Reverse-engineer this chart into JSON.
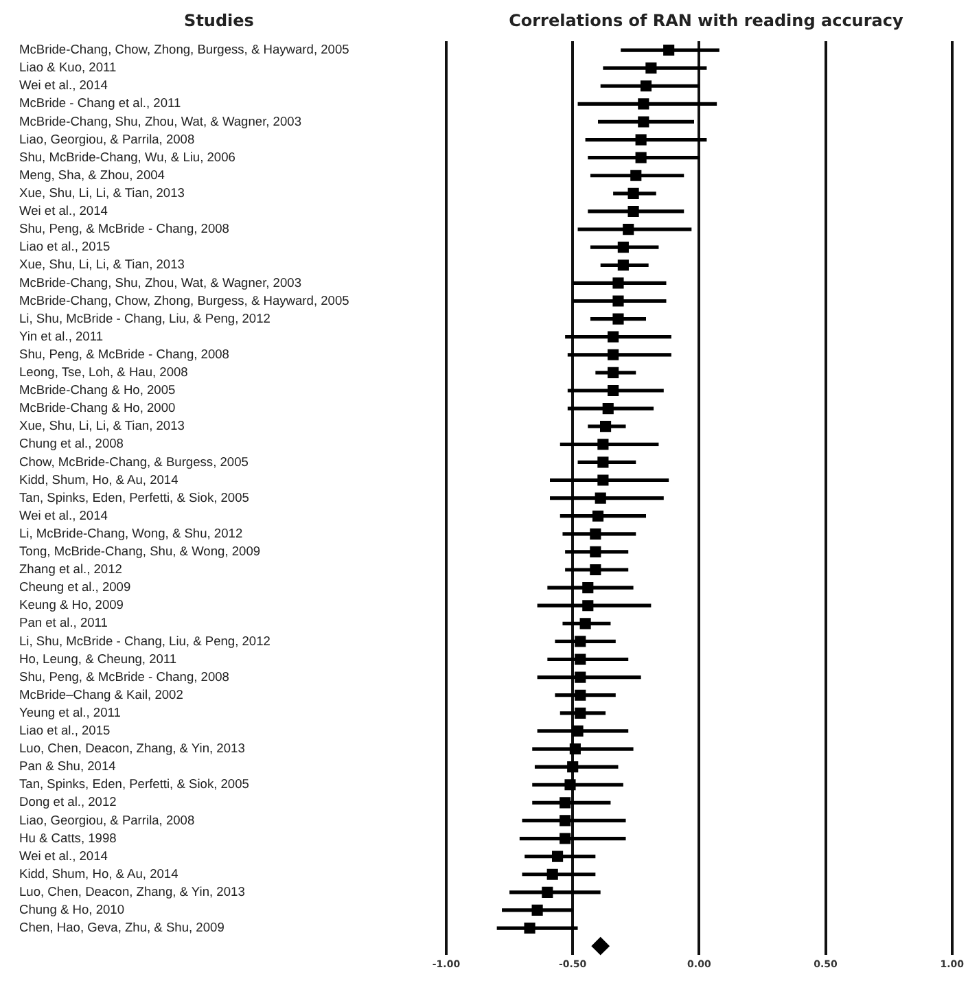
{
  "chart_data": {
    "type": "scatter",
    "orientation": "horizontal",
    "title": "Correlations of RAN with reading accuracy",
    "ylabel": "Studies",
    "categories": [
      "McBride-Chang, Chow, Zhong, Burgess, & Hayward, 2005",
      "Liao & Kuo, 2011",
      "Wei et al., 2014",
      "McBride - Chang et al., 2011",
      "McBride-Chang, Shu, Zhou, Wat, & Wagner, 2003",
      "Liao, Georgiou, & Parrila, 2008",
      "Shu, McBride-Chang, Wu, & Liu, 2006",
      "Meng, Sha, & Zhou, 2004",
      "Xue, Shu, Li, Li, & Tian, 2013",
      "Wei et al., 2014",
      "Shu, Peng, & McBride - Chang, 2008",
      "Liao et al., 2015",
      "Xue, Shu, Li, Li, & Tian, 2013",
      "McBride-Chang, Shu, Zhou, Wat, & Wagner, 2003",
      "McBride-Chang, Chow, Zhong, Burgess, & Hayward, 2005",
      "Li, Shu, McBride - Chang, Liu, & Peng, 2012",
      "Yin et al., 2011",
      "Shu, Peng, & McBride - Chang, 2008",
      "Leong, Tse, Loh, & Hau, 2008",
      "McBride-Chang & Ho, 2005",
      "McBride-Chang & Ho, 2000",
      "Xue, Shu, Li, Li, & Tian, 2013",
      "Chung et al., 2008",
      "Chow, McBride-Chang, & Burgess, 2005",
      "Kidd, Shum, Ho, & Au, 2014",
      "Tan, Spinks, Eden, Perfetti, & Siok, 2005",
      "Wei et al., 2014",
      "Li, McBride-Chang, Wong, & Shu, 2012",
      "Tong, McBride-Chang, Shu, & Wong, 2009",
      "Zhang et al., 2012",
      "Cheung et al., 2009",
      "Keung & Ho, 2009",
      "Pan et al., 2011",
      "Li, Shu, McBride - Chang, Liu, & Peng, 2012",
      "Ho, Leung, & Cheung, 2011",
      "Shu, Peng, & McBride - Chang, 2008",
      "McBride–Chang & Kail, 2002",
      "Yeung et al., 2011",
      "Liao et al., 2015",
      "Luo, Chen, Deacon, Zhang, & Yin, 2013",
      "Pan & Shu, 2014",
      "Tan, Spinks, Eden, Perfetti, & Siok, 2005",
      "Dong et al., 2012",
      "Liao, Georgiou, & Parrila, 2008",
      "Hu & Catts, 1998",
      "Wei et al., 2014",
      "Kidd, Shum, Ho, & Au, 2014",
      "Luo, Chen, Deacon, Zhang, & Yin, 2013",
      "Chung & Ho, 2010",
      "Chen, Hao, Geva, Zhu, & Shu, 2009",
      null
    ],
    "series": [
      {
        "color": "#000000",
        "marker": "square",
        "values": [
          -0.12,
          -0.19,
          -0.21,
          -0.22,
          -0.22,
          -0.23,
          -0.23,
          -0.25,
          -0.26,
          -0.26,
          -0.28,
          -0.3,
          -0.3,
          -0.32,
          -0.32,
          -0.32,
          -0.34,
          -0.34,
          -0.34,
          -0.34,
          -0.36,
          -0.37,
          -0.38,
          -0.38,
          -0.38,
          -0.39,
          -0.4,
          -0.41,
          -0.41,
          -0.41,
          -0.44,
          -0.44,
          -0.45,
          -0.47,
          -0.47,
          -0.47,
          -0.47,
          -0.47,
          -0.48,
          -0.49,
          -0.5,
          -0.51,
          -0.53,
          -0.53,
          -0.53,
          -0.56,
          -0.58,
          -0.6,
          -0.64,
          -0.67,
          null
        ],
        "errors": [
          [
            -0.31,
            0.08
          ],
          [
            -0.38,
            0.03
          ],
          [
            -0.39,
            0.0
          ],
          [
            -0.48,
            0.07
          ],
          [
            -0.4,
            -0.02
          ],
          [
            -0.45,
            0.03
          ],
          [
            -0.44,
            0.0
          ],
          [
            -0.43,
            -0.06
          ],
          [
            -0.34,
            -0.17
          ],
          [
            -0.44,
            -0.06
          ],
          [
            -0.48,
            -0.03
          ],
          [
            -0.43,
            -0.16
          ],
          [
            -0.39,
            -0.2
          ],
          [
            -0.5,
            -0.13
          ],
          [
            -0.5,
            -0.13
          ],
          [
            -0.43,
            -0.21
          ],
          [
            -0.53,
            -0.11
          ],
          [
            -0.52,
            -0.11
          ],
          [
            -0.41,
            -0.25
          ],
          [
            -0.52,
            -0.14
          ],
          [
            -0.52,
            -0.18
          ],
          [
            -0.44,
            -0.29
          ],
          [
            -0.55,
            -0.16
          ],
          [
            -0.48,
            -0.25
          ],
          [
            -0.59,
            -0.12
          ],
          [
            -0.59,
            -0.14
          ],
          [
            -0.55,
            -0.21
          ],
          [
            -0.54,
            -0.25
          ],
          [
            -0.53,
            -0.28
          ],
          [
            -0.53,
            -0.28
          ],
          [
            -0.6,
            -0.26
          ],
          [
            -0.64,
            -0.19
          ],
          [
            -0.54,
            -0.35
          ],
          [
            -0.57,
            -0.33
          ],
          [
            -0.6,
            -0.28
          ],
          [
            -0.64,
            -0.23
          ],
          [
            -0.57,
            -0.33
          ],
          [
            -0.55,
            -0.37
          ],
          [
            -0.64,
            -0.28
          ],
          [
            -0.66,
            -0.26
          ],
          [
            -0.65,
            -0.32
          ],
          [
            -0.66,
            -0.3
          ],
          [
            -0.66,
            -0.35
          ],
          [
            -0.7,
            -0.29
          ],
          [
            -0.71,
            -0.29
          ],
          [
            -0.69,
            -0.41
          ],
          [
            -0.7,
            -0.41
          ],
          [
            -0.75,
            -0.39
          ],
          [
            -0.78,
            -0.5
          ],
          [
            -0.8,
            -0.48
          ],
          null
        ]
      },
      {
        "color": "#000000",
        "marker": "diamond",
        "values": [
          null,
          null,
          null,
          null,
          null,
          null,
          null,
          null,
          null,
          null,
          null,
          null,
          null,
          null,
          null,
          null,
          null,
          null,
          null,
          null,
          null,
          null,
          null,
          null,
          null,
          null,
          null,
          null,
          null,
          null,
          null,
          null,
          null,
          null,
          null,
          null,
          null,
          null,
          null,
          null,
          null,
          null,
          null,
          null,
          null,
          null,
          null,
          null,
          null,
          null,
          -0.39
        ]
      }
    ],
    "xlim": [
      -1,
      1
    ],
    "xticks": [
      {
        "value": -1,
        "label": "-1.00"
      },
      {
        "value": -0.5,
        "label": "-0.50"
      },
      {
        "value": 0,
        "label": "0.00"
      },
      {
        "value": 0.5,
        "label": "0.50"
      },
      {
        "value": 1,
        "label": "1.00"
      }
    ],
    "grid": "x"
  }
}
